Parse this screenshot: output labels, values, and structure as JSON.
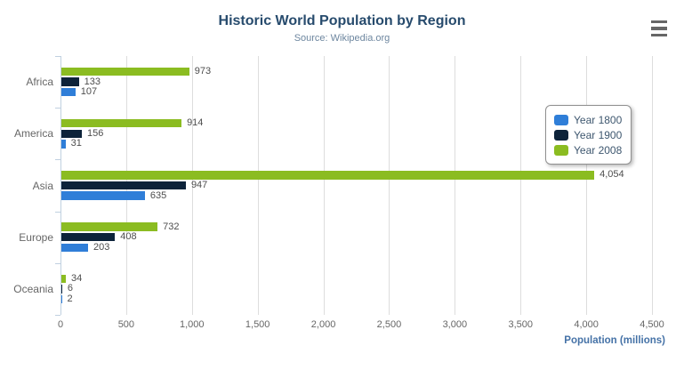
{
  "header": {
    "title": "Historic World Population by Region",
    "subtitle": "Source: Wikipedia.org"
  },
  "chart_data": {
    "type": "bar",
    "orientation": "horizontal",
    "title": "Historic World Population by Region",
    "subtitle": "Source: Wikipedia.org",
    "categories": [
      "Africa",
      "America",
      "Asia",
      "Europe",
      "Oceania"
    ],
    "series": [
      {
        "name": "Year 1800",
        "color": "#2f7ed8",
        "values": [
          107,
          31,
          635,
          203,
          2
        ]
      },
      {
        "name": "Year 1900",
        "color": "#0d233a",
        "values": [
          133,
          156,
          947,
          408,
          6
        ]
      },
      {
        "name": "Year 2008",
        "color": "#8bbc21",
        "values": [
          973,
          914,
          4054,
          732,
          34
        ]
      }
    ],
    "bar_display_order_top_to_bottom": [
      "Year 2008",
      "Year 1900",
      "Year 1800"
    ],
    "xlabel": "Population (millions)",
    "ylabel": "",
    "xlim": [
      0,
      4500
    ],
    "xticks": [
      0,
      500,
      1000,
      1500,
      2000,
      2500,
      3000,
      3500,
      4000,
      4500
    ],
    "grid": true,
    "data_labels": true,
    "legend_position": "right-top"
  },
  "legend": {
    "items": [
      {
        "label": "Year 1800",
        "color": "#2f7ed8"
      },
      {
        "label": "Year 1900",
        "color": "#0d233a"
      },
      {
        "label": "Year 2008",
        "color": "#8bbc21"
      }
    ]
  },
  "colors": {
    "title": "#274b6d",
    "subtitle": "#6d869f",
    "axis_title": "#4572a7",
    "axis_labels": "#666666",
    "value_labels": "#4d4d4d",
    "gridline": "#dddddd",
    "axis_line": "#c0d0e0",
    "legend_border": "#909090",
    "legend_text": "#3e576f",
    "menu_icon": "#666666"
  }
}
